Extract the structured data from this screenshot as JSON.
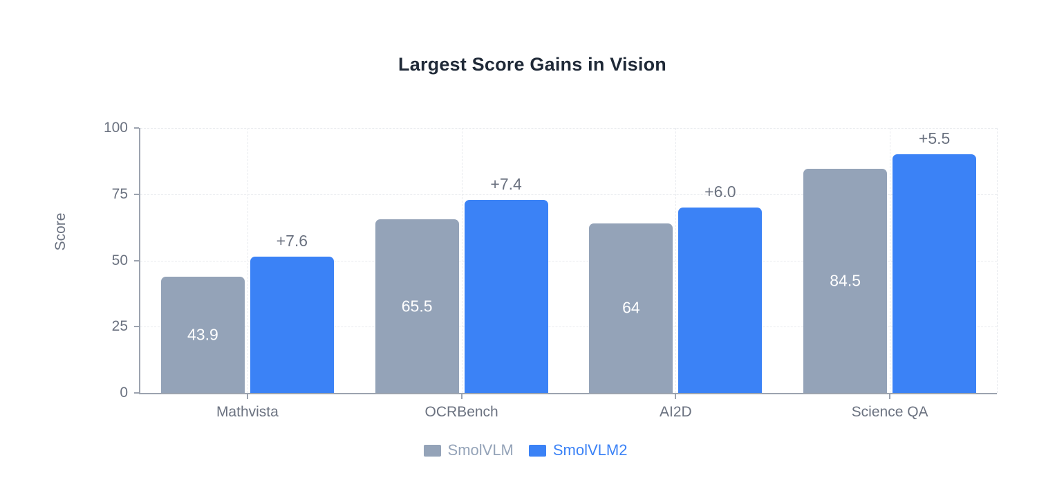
{
  "chart_data": {
    "type": "bar",
    "title": "Largest Score Gains in Vision",
    "xlabel": "",
    "ylabel": "Score",
    "ylim": [
      0,
      100
    ],
    "yticks": [
      0,
      25,
      50,
      75,
      100
    ],
    "categories": [
      "Mathvista",
      "OCRBench",
      "AI2D",
      "Science QA"
    ],
    "series": [
      {
        "name": "SmolVLM",
        "color": "#94a3b8",
        "values": [
          43.9,
          65.5,
          64,
          84.5
        ],
        "bar_labels": [
          "43.9",
          "65.5",
          "64",
          "84.5"
        ]
      },
      {
        "name": "SmolVLM2",
        "color": "#3b82f6",
        "values": [
          51.5,
          72.9,
          70.0,
          90.0
        ],
        "gain_labels": [
          "+7.6",
          "+7.4",
          "+6.0",
          "+5.5"
        ]
      }
    ],
    "grid": "dashed, horizontal at yticks and vertical at category centers",
    "legend_position": "bottom",
    "colors": {
      "title": "#1f2937",
      "axis_line": "#9ca3af",
      "tick_labels": "#6b7280",
      "gridlines": "#e8eaee",
      "bar_value_text": "#ffffff",
      "background": "#ffffff"
    }
  }
}
